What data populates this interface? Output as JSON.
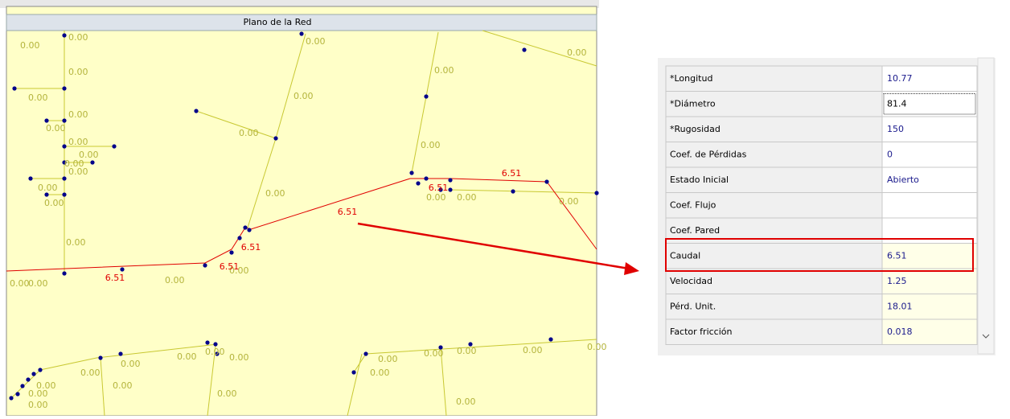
{
  "window": {
    "title": "Plano de la Red"
  },
  "map": {
    "labels": [
      "0.00",
      "0.00",
      "0.00",
      "0.00",
      "0.00",
      "0.00",
      "0.00",
      "0.00",
      "0.00",
      "0.00",
      "0.00",
      "0.00",
      "0.00",
      "0.00",
      "0.00",
      "0.00",
      "0.00",
      "0.00",
      "0.00",
      "0.00",
      "0.00",
      "0.00",
      "0.00",
      "0.00",
      "0.00",
      "0.00",
      "0.00",
      "0.00",
      "0.00",
      "0.00",
      "0.00",
      "0.00",
      "0.00",
      "0.00",
      "0.00",
      "0.00",
      "0.00",
      "0.00",
      "0.00",
      "0.00",
      "0.00",
      "0.00",
      "0.00",
      "0.00"
    ],
    "flow_labels": [
      "6.51",
      "6.51",
      "6.51",
      "6.51",
      "6.51",
      "6.51"
    ]
  },
  "properties": {
    "rows": [
      {
        "name": "*Longitud",
        "value": "10.77"
      },
      {
        "name": "*Diámetro",
        "value": "81.4"
      },
      {
        "name": "*Rugosidad",
        "value": "150"
      },
      {
        "name": "Coef. de Pérdidas",
        "value": "0"
      },
      {
        "name": "Estado Inicial",
        "value": "Abierto"
      },
      {
        "name": "Coef. Flujo"
      },
      {
        "name": "Coef. Pared"
      },
      {
        "name": "Caudal",
        "value": "6.51"
      },
      {
        "name": "Velocidad",
        "value": "1.25"
      },
      {
        "name": "Pérd. Unit.",
        "value": "18.01"
      },
      {
        "name": "Factor fricción",
        "value": "0.018"
      }
    ]
  }
}
